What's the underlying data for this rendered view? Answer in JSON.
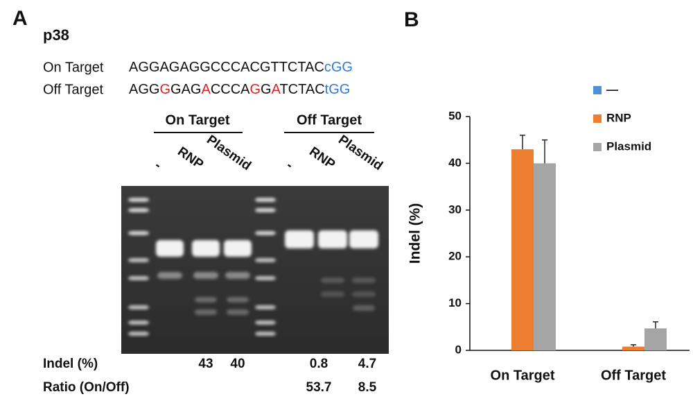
{
  "panel_a": {
    "label": "A",
    "gene": "p38",
    "sequences": [
      {
        "name": "On Target",
        "segments": [
          {
            "text": "AGGAGAGGCCCACGTTCTAC"
          },
          {
            "text": "cGG",
            "color": "#2e7bcf"
          }
        ]
      },
      {
        "name": "Off Target",
        "segments": [
          {
            "text": "AGG"
          },
          {
            "text": "G",
            "color": "#e02020"
          },
          {
            "text": "GAG"
          },
          {
            "text": "A",
            "color": "#e02020"
          },
          {
            "text": "CCCA"
          },
          {
            "text": "G",
            "color": "#e02020"
          },
          {
            "text": "G"
          },
          {
            "text": "A",
            "color": "#e02020"
          },
          {
            "text": "TCTAC"
          },
          {
            "text": "tGG",
            "color": "#2e7bcf"
          }
        ]
      }
    ],
    "gel_groups": [
      {
        "name": "On Target",
        "lanes": [
          "-",
          "RNP",
          "Plasmid"
        ]
      },
      {
        "name": "Off Target",
        "lanes": [
          "-",
          "RNP",
          "Plasmid"
        ]
      }
    ],
    "indel": {
      "label": "Indel (%)",
      "on_target": [
        null,
        43,
        40
      ],
      "off_target": [
        null,
        0.8,
        4.7
      ]
    },
    "ratio": {
      "label": "Ratio (On/Off)",
      "off_target": [
        null,
        53.7,
        8.5
      ]
    }
  },
  "chart_data": {
    "type": "bar",
    "panel_label": "B",
    "y_label": "Indel (%)",
    "categories": [
      "On Target",
      "Off Target"
    ],
    "series": [
      {
        "name": "—",
        "color": "#4f8fd6",
        "values": [
          0,
          0
        ],
        "errors": [
          0,
          0
        ]
      },
      {
        "name": "RNP",
        "color": "#ed7d31",
        "values": [
          43,
          0.8
        ],
        "errors": [
          3,
          0.4
        ]
      },
      {
        "name": "Plasmid",
        "color": "#a5a5a5",
        "values": [
          40,
          4.7
        ],
        "errors": [
          5,
          1.4
        ]
      }
    ],
    "ylim": [
      0,
      50
    ],
    "yticks": [
      0,
      10,
      20,
      30,
      40,
      50
    ]
  }
}
